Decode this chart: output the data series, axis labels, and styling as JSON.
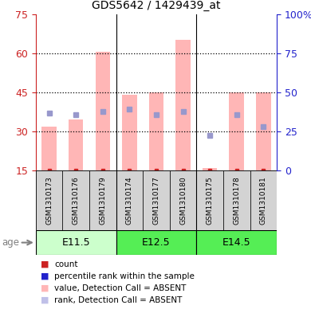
{
  "title": "GDS5642 / 1429439_at",
  "samples": [
    "GSM1310173",
    "GSM1310176",
    "GSM1310179",
    "GSM1310174",
    "GSM1310177",
    "GSM1310180",
    "GSM1310175",
    "GSM1310178",
    "GSM1310181"
  ],
  "pink_bar_tops": [
    32.0,
    34.5,
    60.5,
    44.0,
    45.0,
    65.0,
    16.0,
    45.0,
    45.0
  ],
  "blue_sq_values": [
    37.0,
    36.5,
    37.5,
    38.5,
    36.5,
    37.5,
    28.5,
    36.5,
    32.0
  ],
  "red_sq_values": [
    15.0,
    15.0,
    15.0,
    15.0,
    15.0,
    15.0,
    15.0,
    15.0,
    15.0
  ],
  "ylim_left": [
    15,
    75
  ],
  "ylim_right": [
    0,
    100
  ],
  "yticks_left": [
    15,
    30,
    45,
    60,
    75
  ],
  "ytick_labels_left": [
    "15",
    "30",
    "45",
    "60",
    "75"
  ],
  "yticks_right": [
    0,
    25,
    50,
    75,
    100
  ],
  "ytick_labels_right": [
    "0",
    "25",
    "50",
    "75",
    "100%"
  ],
  "bar_color_pink": "#FFB6B6",
  "blue_sq_color": "#9898CC",
  "red_sq_color": "#CC2222",
  "left_axis_color": "#CC2222",
  "right_axis_color": "#2222CC",
  "group_defs": [
    {
      "label": "E11.5",
      "start": 0,
      "end": 2,
      "facecolor": "#ccffcc"
    },
    {
      "label": "E12.5",
      "start": 3,
      "end": 5,
      "facecolor": "#55ee55"
    },
    {
      "label": "E14.5",
      "start": 6,
      "end": 8,
      "facecolor": "#55ee55"
    }
  ],
  "legend_items": [
    {
      "color": "#CC2222",
      "label": "count"
    },
    {
      "color": "#2222CC",
      "label": "percentile rank within the sample"
    },
    {
      "color": "#FFB6B6",
      "label": "value, Detection Call = ABSENT"
    },
    {
      "color": "#C0C0E8",
      "label": "rank, Detection Call = ABSENT"
    }
  ],
  "bar_width": 0.55
}
